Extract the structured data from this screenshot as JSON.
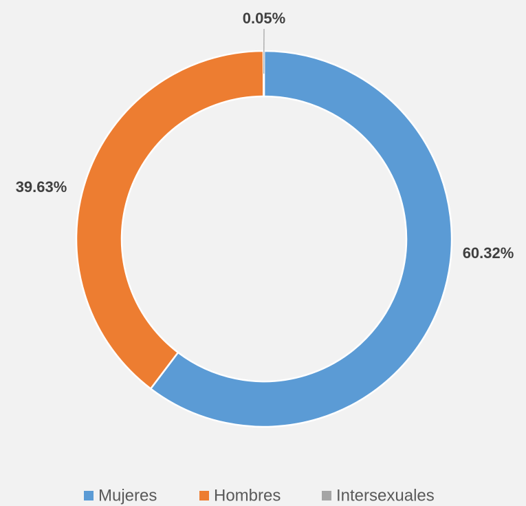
{
  "chart_data": {
    "type": "donut",
    "categories": [
      "Mujeres",
      "Hombres",
      "Intersexuales"
    ],
    "values": [
      60.32,
      39.63,
      0.05
    ],
    "value_labels": [
      "60.32%",
      "39.63%",
      "0.05%"
    ],
    "colors": [
      "#5b9bd5",
      "#ed7d31",
      "#a5a5a5"
    ],
    "legend": "bottom"
  }
}
